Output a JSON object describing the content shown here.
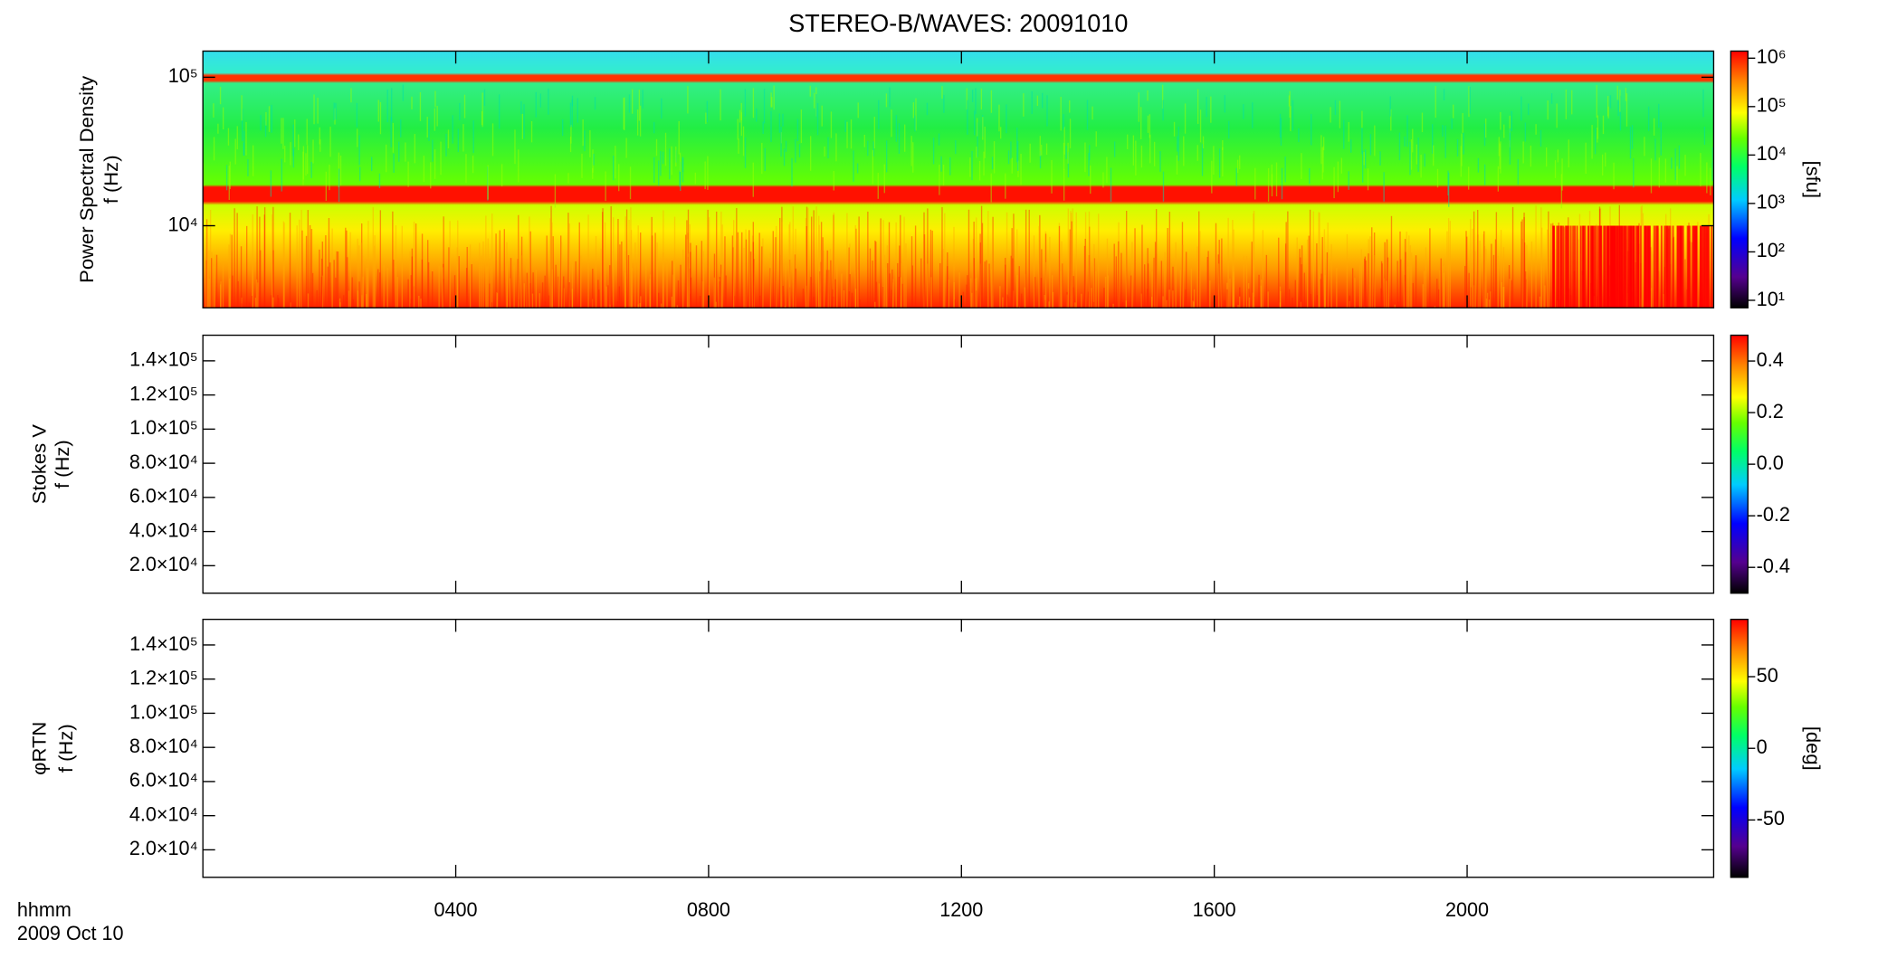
{
  "chart_data": [
    {
      "type": "spectrogram",
      "title": "STEREO-B/WAVES: 20091010",
      "ylabel": [
        "Power Spectral Density",
        "f (Hz)"
      ],
      "log": true,
      "ylim": [
        2800,
        150000
      ],
      "yticks": [
        {
          "value": 10000,
          "label": "10⁴"
        },
        {
          "value": 100000,
          "label": "10⁵"
        }
      ],
      "xlim": [
        0,
        23.9
      ],
      "xticks": [
        {
          "value": 4,
          "label": "0400"
        },
        {
          "value": 8,
          "label": "0800"
        },
        {
          "value": 12,
          "label": "1200"
        },
        {
          "value": 16,
          "label": "1600"
        },
        {
          "value": 20,
          "label": "2000"
        }
      ],
      "colormap": "rainbow",
      "colorbar": {
        "log": true,
        "lim": [
          7,
          1400000
        ],
        "label": "[sfu]",
        "ticks": [
          {
            "value": 10,
            "label": "10¹"
          },
          {
            "value": 100,
            "label": "10²"
          },
          {
            "value": 1000,
            "label": "10³"
          },
          {
            "value": 10000,
            "label": "10⁴"
          },
          {
            "value": 100000,
            "label": "10⁵"
          },
          {
            "value": 1000000,
            "label": "10⁶"
          }
        ]
      }
    },
    {
      "type": "spectrogram",
      "ylabel": [
        "Stokes V",
        "f (Hz)"
      ],
      "log": false,
      "ylim": [
        3900,
        155000
      ],
      "yticks": [
        {
          "value": 20000,
          "label": "2.0×10⁴"
        },
        {
          "value": 40000,
          "label": "4.0×10⁴"
        },
        {
          "value": 60000,
          "label": "6.0×10⁴"
        },
        {
          "value": 80000,
          "label": "8.0×10⁴"
        },
        {
          "value": 100000,
          "label": "1.0×10⁵"
        },
        {
          "value": 120000,
          "label": "1.2×10⁵"
        },
        {
          "value": 140000,
          "label": "1.4×10⁵"
        }
      ],
      "xlim": [
        0,
        23.9
      ],
      "xticks": [
        {
          "value": 4,
          "label": "0400"
        },
        {
          "value": 8,
          "label": "0800"
        },
        {
          "value": 12,
          "label": "1200"
        },
        {
          "value": 16,
          "label": "1600"
        },
        {
          "value": 20,
          "label": "2000"
        }
      ],
      "colormap": "rainbow",
      "colorbar": {
        "log": false,
        "lim": [
          -0.5,
          0.5
        ],
        "ticks": [
          -0.4,
          -0.2,
          {
            "value": 0,
            "label": "0.0"
          },
          0.2,
          0.4
        ]
      }
    },
    {
      "type": "spectrogram",
      "ylabel": [
        "φRTN",
        "f (Hz)"
      ],
      "log": false,
      "ylim": [
        3900,
        155000
      ],
      "yticks": [
        {
          "value": 20000,
          "label": "2.0×10⁴"
        },
        {
          "value": 40000,
          "label": "4.0×10⁴"
        },
        {
          "value": 60000,
          "label": "6.0×10⁴"
        },
        {
          "value": 80000,
          "label": "8.0×10⁴"
        },
        {
          "value": 100000,
          "label": "1.0×10⁵"
        },
        {
          "value": 120000,
          "label": "1.2×10⁵"
        },
        {
          "value": 140000,
          "label": "1.4×10⁵"
        }
      ],
      "xlim": [
        0,
        23.9
      ],
      "xticks": [
        {
          "value": 4,
          "label": "0400"
        },
        {
          "value": 8,
          "label": "0800"
        },
        {
          "value": 12,
          "label": "1200"
        },
        {
          "value": 16,
          "label": "1600"
        },
        {
          "value": 20,
          "label": "2000"
        }
      ],
      "xlabel": "hhmm",
      "date": "2009 Oct 10",
      "colormap": "rainbow",
      "colorbar": {
        "log": false,
        "lim": [
          -90,
          90
        ],
        "label": "[deg]",
        "ticks": [
          -50,
          0,
          50
        ]
      }
    }
  ]
}
